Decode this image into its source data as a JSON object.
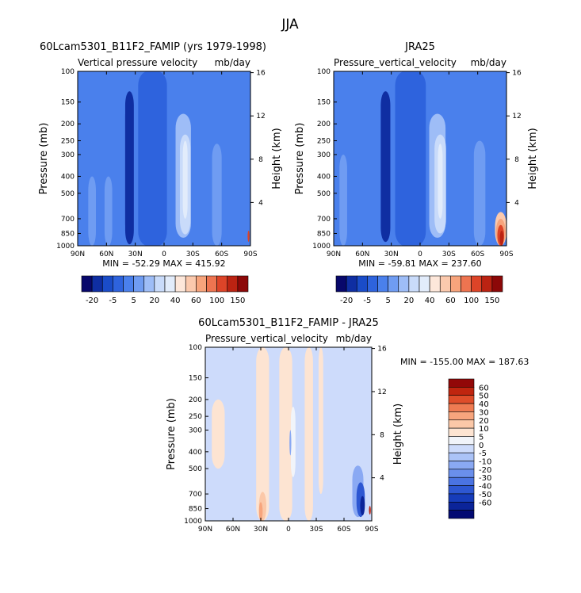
{
  "page": {
    "title": "JJA"
  },
  "palettes": {
    "field": [
      "#08086b",
      "#0f2ea2",
      "#1a4cc8",
      "#2e63dd",
      "#4a80ec",
      "#6f9cf2",
      "#9ebdf7",
      "#c9dbfa",
      "#e2ecfb",
      "#fde7da",
      "#fbc9ad",
      "#f7a47c",
      "#ee7450",
      "#dd4428",
      "#bb2312",
      "#8c0808"
    ],
    "diff": [
      "#030a72",
      "#0b2499",
      "#163cba",
      "#2d57d2",
      "#4a73e2",
      "#6a8fec",
      "#8aa9f3",
      "#abc3f7",
      "#cddbfb",
      "#f1f4fa",
      "#fde4d2",
      "#fbc8a8",
      "#f7a57d",
      "#ef7b52",
      "#df4d2a",
      "#c0250f",
      "#920808"
    ]
  },
  "chart_data": [
    {
      "id": "model",
      "type": "heatmap",
      "title": "60Lcam5301_B11F2_FAMIP (yrs 1979-1998)",
      "subtitle": "Vertical pressure velocity",
      "units": "mb/day",
      "xlabel": "",
      "ylabel": "Pressure (mb)",
      "y2label": "Height (km)",
      "x_ticks": [
        "90N",
        "60N",
        "30N",
        "0",
        "30S",
        "60S",
        "90S"
      ],
      "y_ticks": [
        "100",
        "150",
        "200",
        "250",
        "300",
        "400",
        "500",
        "700",
        "850",
        "1000"
      ],
      "y_tick_values": [
        100,
        150,
        200,
        250,
        300,
        400,
        500,
        700,
        850,
        1000
      ],
      "y2_ticks": [
        "16",
        "12",
        "8",
        "4"
      ],
      "y2_tick_values": [
        16,
        12,
        8,
        4
      ],
      "stats": "MIN = -52.29   MAX = 415.92",
      "min": -52.29,
      "max": 415.92,
      "colorbar_labels": [
        "-20",
        "-5",
        "5",
        "20",
        "40",
        "60",
        "100",
        "150"
      ],
      "colorbar_levels": 16,
      "fill_index": 4,
      "features": [
        {
          "lat": 38,
          "width": 5,
          "p_top": 150,
          "p_bottom": 900,
          "level": 0
        },
        {
          "lat": 36,
          "width": 9,
          "p_top": 130,
          "p_bottom": 980,
          "level": 1
        },
        {
          "lat": 12,
          "width": 30,
          "p_top": 100,
          "p_bottom": 1000,
          "level": 3
        },
        {
          "lat": -20,
          "width": 16,
          "p_top": 175,
          "p_bottom": 900,
          "level": 6
        },
        {
          "lat": -22,
          "width": 11,
          "p_top": 230,
          "p_bottom": 860,
          "level": 7
        },
        {
          "lat": -22,
          "width": 5,
          "p_top": 250,
          "p_bottom": 700,
          "level": 8
        },
        {
          "lat": -55,
          "width": 10,
          "p_top": 260,
          "p_bottom": 1000,
          "level": 5
        },
        {
          "lat": 58,
          "width": 8,
          "p_top": 400,
          "p_bottom": 1000,
          "level": 5
        },
        {
          "lat": 75,
          "width": 8,
          "p_top": 400,
          "p_bottom": 1000,
          "level": 5
        },
        {
          "lat": -88,
          "width": 2,
          "p_top": 820,
          "p_bottom": 950,
          "level": 13
        }
      ]
    },
    {
      "id": "obs",
      "type": "heatmap",
      "title": "JRA25",
      "subtitle": "Pressure_vertical_velocity",
      "units": "mb/day",
      "xlabel": "",
      "ylabel": "Pressure (mb)",
      "y2label": "Height (km)",
      "x_ticks": [
        "90N",
        "60N",
        "30N",
        "0",
        "30S",
        "60S",
        "90S"
      ],
      "y_ticks": [
        "100",
        "150",
        "200",
        "250",
        "300",
        "400",
        "500",
        "700",
        "850",
        "1000"
      ],
      "y_tick_values": [
        100,
        150,
        200,
        250,
        300,
        400,
        500,
        700,
        850,
        1000
      ],
      "y2_ticks": [
        "16",
        "12",
        "8",
        "4"
      ],
      "y2_tick_values": [
        16,
        12,
        8,
        4
      ],
      "stats": "MIN = -59.81   MAX = 237.60",
      "min": -59.81,
      "max": 237.6,
      "colorbar_labels": [
        "-20",
        "-5",
        "5",
        "20",
        "40",
        "60",
        "100",
        "150"
      ],
      "colorbar_levels": 16,
      "fill_index": 4,
      "features": [
        {
          "lat": 38,
          "width": 5,
          "p_top": 170,
          "p_bottom": 850,
          "level": 0
        },
        {
          "lat": 36,
          "width": 10,
          "p_top": 130,
          "p_bottom": 950,
          "level": 1
        },
        {
          "lat": 10,
          "width": 32,
          "p_top": 100,
          "p_bottom": 1000,
          "level": 3
        },
        {
          "lat": -18,
          "width": 17,
          "p_top": 175,
          "p_bottom": 900,
          "level": 6
        },
        {
          "lat": -21,
          "width": 12,
          "p_top": 230,
          "p_bottom": 850,
          "level": 7
        },
        {
          "lat": -21,
          "width": 5,
          "p_top": 260,
          "p_bottom": 700,
          "level": 8
        },
        {
          "lat": -62,
          "width": 12,
          "p_top": 250,
          "p_bottom": 1000,
          "level": 5
        },
        {
          "lat": 80,
          "width": 8,
          "p_top": 300,
          "p_bottom": 1000,
          "level": 5
        },
        {
          "lat": -84,
          "width": 12,
          "p_top": 640,
          "p_bottom": 1000,
          "level": 10
        },
        {
          "lat": -84,
          "width": 10,
          "p_top": 700,
          "p_bottom": 1000,
          "level": 11
        },
        {
          "lat": -84,
          "width": 7,
          "p_top": 760,
          "p_bottom": 1000,
          "level": 13
        },
        {
          "lat": -85,
          "width": 4,
          "p_top": 820,
          "p_bottom": 1000,
          "level": 14
        }
      ]
    },
    {
      "id": "diff",
      "type": "heatmap",
      "title": "60Lcam5301_B11F2_FAMIP - JRA25",
      "subtitle": "Pressure_vertical_velocity",
      "units": "mb/day",
      "xlabel": "",
      "ylabel": "Pressure (mb)",
      "y2label": "Height (km)",
      "x_ticks": [
        "90N",
        "60N",
        "30N",
        "0",
        "30S",
        "60S",
        "90S"
      ],
      "y_ticks": [
        "100",
        "150",
        "200",
        "250",
        "300",
        "400",
        "500",
        "700",
        "850",
        "1000"
      ],
      "y_tick_values": [
        100,
        150,
        200,
        250,
        300,
        400,
        500,
        700,
        850,
        1000
      ],
      "y2_ticks": [
        "16",
        "12",
        "8",
        "4"
      ],
      "y2_tick_values": [
        16,
        12,
        8,
        4
      ],
      "stats": "MIN = -155.00   MAX = 187.63",
      "min": -155.0,
      "max": 187.63,
      "colorbar_labels": [
        "60",
        "50",
        "40",
        "30",
        "20",
        "10",
        "5",
        "0",
        "-5",
        "-10",
        "-20",
        "-30",
        "-40",
        "-50",
        "-60"
      ],
      "colorbar_levels": 17,
      "fill_index": 8,
      "features": [
        {
          "lat": 3,
          "width": 14,
          "p_top": 100,
          "p_bottom": 1000,
          "level": 10
        },
        {
          "lat": 28,
          "width": 14,
          "p_top": 100,
          "p_bottom": 1000,
          "level": 10
        },
        {
          "lat": -22,
          "width": 9,
          "p_top": 100,
          "p_bottom": 1000,
          "level": 10
        },
        {
          "lat": -35,
          "width": 5,
          "p_top": 100,
          "p_bottom": 700,
          "level": 10
        },
        {
          "lat": 76,
          "width": 14,
          "p_top": 200,
          "p_bottom": 500,
          "level": 10
        },
        {
          "lat": -5,
          "width": 5,
          "p_top": 220,
          "p_bottom": 560,
          "level": 9
        },
        {
          "lat": -2,
          "width": 2,
          "p_top": 300,
          "p_bottom": 420,
          "level": 6
        },
        {
          "lat": 28,
          "width": 8,
          "p_top": 680,
          "p_bottom": 1000,
          "level": 11
        },
        {
          "lat": 30,
          "width": 4,
          "p_top": 780,
          "p_bottom": 1000,
          "level": 12
        },
        {
          "lat": -75,
          "width": 12,
          "p_top": 480,
          "p_bottom": 950,
          "level": 6
        },
        {
          "lat": -78,
          "width": 9,
          "p_top": 600,
          "p_bottom": 950,
          "level": 3
        },
        {
          "lat": -80,
          "width": 5,
          "p_top": 720,
          "p_bottom": 930,
          "level": 1
        },
        {
          "lat": -88,
          "width": 2,
          "p_top": 820,
          "p_bottom": 920,
          "level": 15
        }
      ]
    }
  ]
}
